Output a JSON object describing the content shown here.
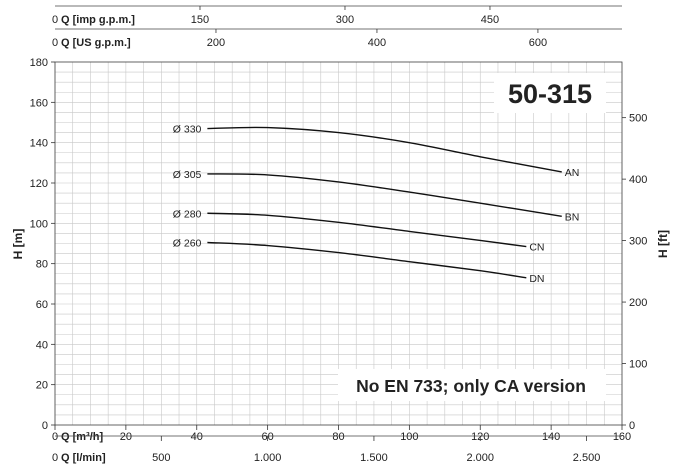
{
  "chart_data": {
    "type": "line",
    "title": "50-315",
    "note": "No EN 733; only CA version",
    "xlabel": "Q [m³/h]",
    "ylabel": "H [m]",
    "y2label": "H [ft]",
    "xlim": [
      0,
      160
    ],
    "ylim": [
      0,
      180
    ],
    "x_ticks": [
      "0",
      "20",
      "40",
      "60",
      "80",
      "100",
      "120",
      "140",
      "160"
    ],
    "y_ticks": [
      "0",
      "20",
      "40",
      "60",
      "80",
      "100",
      "120",
      "140",
      "160",
      "180"
    ],
    "y2_ticks": [
      {
        "value": 0,
        "label": "0"
      },
      {
        "value": 100,
        "label": "100"
      },
      {
        "value": 200,
        "label": "200"
      },
      {
        "value": 300,
        "label": "300"
      },
      {
        "value": 400,
        "label": "400"
      },
      {
        "value": 500,
        "label": "500"
      }
    ],
    "top_axes": [
      {
        "label": "Q [imp g.p.m.]",
        "zero": "0",
        "ticks": [
          {
            "value": 150,
            "label": "150"
          },
          {
            "value": 300,
            "label": "300"
          },
          {
            "value": 450,
            "label": "450"
          }
        ]
      },
      {
        "label": "Q [US g.p.m.]",
        "zero": "0",
        "ticks": [
          {
            "value": 200,
            "label": "200"
          },
          {
            "value": 400,
            "label": "400"
          },
          {
            "value": 600,
            "label": "600"
          }
        ]
      }
    ],
    "bottom_axis2": {
      "label": "Q [l/min]",
      "zero": "0",
      "ticks": [
        {
          "value": 500,
          "label": "500"
        },
        {
          "value": 1000,
          "label": "1.000"
        },
        {
          "value": 1500,
          "label": "1.500"
        },
        {
          "value": 2000,
          "label": "2.000"
        },
        {
          "value": 2500,
          "label": "2.500"
        }
      ]
    },
    "series": [
      {
        "name": "AN",
        "diameter": "Ø 330",
        "x": [
          43,
          60,
          80,
          100,
          120,
          143
        ],
        "y": [
          147,
          147.5,
          145,
          140,
          133,
          125.5
        ]
      },
      {
        "name": "BN",
        "diameter": "Ø 305",
        "x": [
          43,
          60,
          80,
          100,
          120,
          143
        ],
        "y": [
          124.5,
          124,
          120.5,
          115.5,
          110,
          103.5
        ]
      },
      {
        "name": "CN",
        "diameter": "Ø 280",
        "x": [
          43,
          60,
          80,
          100,
          120,
          133
        ],
        "y": [
          105,
          104,
          100.5,
          96,
          91.5,
          88.5
        ]
      },
      {
        "name": "DN",
        "diameter": "Ø 260",
        "x": [
          43,
          60,
          80,
          100,
          120,
          133
        ],
        "y": [
          90.5,
          89,
          85.5,
          81,
          76.5,
          73
        ]
      }
    ]
  }
}
